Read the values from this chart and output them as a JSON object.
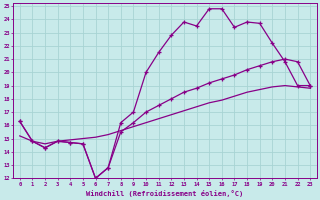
{
  "xlabel": "Windchill (Refroidissement éolien,°C)",
  "bg_color": "#c8eaea",
  "grid_color": "#a8d4d4",
  "line_color": "#880088",
  "xlim": [
    -0.5,
    23.5
  ],
  "ylim": [
    12,
    25.2
  ],
  "xticks": [
    0,
    1,
    2,
    3,
    4,
    5,
    6,
    7,
    8,
    9,
    10,
    11,
    12,
    13,
    14,
    15,
    16,
    17,
    18,
    19,
    20,
    21,
    22,
    23
  ],
  "yticks": [
    12,
    13,
    14,
    15,
    16,
    17,
    18,
    19,
    20,
    21,
    22,
    23,
    24,
    25
  ],
  "line1_x": [
    0,
    1,
    2,
    3,
    4,
    5,
    6,
    7,
    8,
    9,
    10,
    11,
    12,
    13,
    14,
    15,
    16,
    17,
    18,
    19,
    20,
    21,
    22,
    23
  ],
  "line1_y": [
    16.3,
    14.8,
    14.3,
    14.8,
    14.7,
    14.6,
    12.0,
    12.8,
    16.2,
    17.0,
    20.0,
    21.5,
    22.8,
    23.8,
    23.5,
    24.8,
    24.8,
    23.4,
    23.8,
    23.7,
    22.2,
    20.8,
    19.0,
    19.0
  ],
  "line2_x": [
    0,
    1,
    2,
    3,
    4,
    5,
    6,
    7,
    8,
    9,
    10,
    11,
    12,
    13,
    14,
    15,
    16,
    17,
    18,
    19,
    20,
    21,
    22,
    23
  ],
  "line2_y": [
    16.3,
    14.8,
    14.3,
    14.8,
    14.7,
    14.6,
    12.0,
    12.8,
    15.5,
    16.2,
    17.0,
    17.5,
    18.0,
    18.5,
    18.8,
    19.2,
    19.5,
    19.8,
    20.2,
    20.5,
    20.8,
    21.0,
    20.8,
    19.0
  ],
  "line3_x": [
    0,
    1,
    2,
    3,
    4,
    5,
    6,
    7,
    8,
    9,
    10,
    11,
    12,
    13,
    14,
    15,
    16,
    17,
    18,
    19,
    20,
    21,
    22,
    23
  ],
  "line3_y": [
    15.2,
    14.8,
    14.6,
    14.8,
    14.9,
    15.0,
    15.1,
    15.3,
    15.6,
    15.9,
    16.2,
    16.5,
    16.8,
    17.1,
    17.4,
    17.7,
    17.9,
    18.2,
    18.5,
    18.7,
    18.9,
    19.0,
    18.9,
    18.8
  ]
}
